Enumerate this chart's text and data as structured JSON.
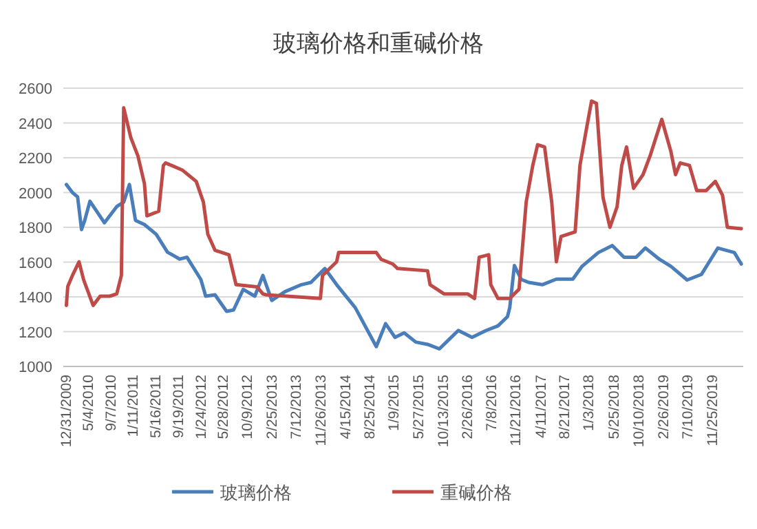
{
  "chart_data": {
    "type": "line",
    "title": "玻璃价格和重碱价格",
    "xlim": [
      "2009-12-20",
      "2020-05-22"
    ],
    "ylim": [
      1000,
      2600
    ],
    "yticks": [
      1000,
      1200,
      1400,
      1600,
      1800,
      2000,
      2200,
      2400,
      2600
    ],
    "xticks": [
      {
        "value": "2009-12-31",
        "label": "12/31/2009"
      },
      {
        "value": "2010-05-04",
        "label": "5/4/2010"
      },
      {
        "value": "2010-09-07",
        "label": "9/7/2010"
      },
      {
        "value": "2011-01-11",
        "label": "1/11/2011"
      },
      {
        "value": "2011-05-16",
        "label": "5/16/2011"
      },
      {
        "value": "2011-09-19",
        "label": "9/19/2011"
      },
      {
        "value": "2012-01-24",
        "label": "1/24/2012"
      },
      {
        "value": "2012-05-28",
        "label": "5/28/2012"
      },
      {
        "value": "2012-10-09",
        "label": "10/9/2012"
      },
      {
        "value": "2013-02-25",
        "label": "2/25/2013"
      },
      {
        "value": "2013-07-12",
        "label": "7/12/2013"
      },
      {
        "value": "2013-11-26",
        "label": "11/26/2013"
      },
      {
        "value": "2014-04-15",
        "label": "4/15/2014"
      },
      {
        "value": "2014-08-25",
        "label": "8/25/2014"
      },
      {
        "value": "2015-01-09",
        "label": "1/9/2015"
      },
      {
        "value": "2015-05-27",
        "label": "5/27/2015"
      },
      {
        "value": "2015-10-13",
        "label": "10/13/2015"
      },
      {
        "value": "2016-02-26",
        "label": "2/26/2016"
      },
      {
        "value": "2016-07-08",
        "label": "7/8/2016"
      },
      {
        "value": "2016-11-21",
        "label": "11/21/2016"
      },
      {
        "value": "2017-04-11",
        "label": "4/11/2017"
      },
      {
        "value": "2017-08-21",
        "label": "8/21/2017"
      },
      {
        "value": "2018-01-03",
        "label": "1/3/2018"
      },
      {
        "value": "2018-05-25",
        "label": "5/25/2018"
      },
      {
        "value": "2018-10-10",
        "label": "10/10/2018"
      },
      {
        "value": "2019-02-26",
        "label": "2/26/2019"
      },
      {
        "value": "2019-07-10",
        "label": "7/10/2019"
      },
      {
        "value": "2019-11-25",
        "label": "11/25/2019"
      }
    ],
    "grid": "y",
    "legend": "bottom",
    "series": [
      {
        "name": "玻璃价格",
        "color": "#4a7ebb",
        "x": [
          "2010-01-06",
          "2010-02-09",
          "2010-03-10",
          "2010-04-01",
          "2010-04-19",
          "2010-05-18",
          "2010-08-07",
          "2010-10-15",
          "2010-11-23",
          "2010-12-25",
          "2011-01-28",
          "2011-03-19",
          "2011-05-24",
          "2011-07-26",
          "2011-10-03",
          "2011-11-12",
          "2012-01-29",
          "2012-02-25",
          "2012-04-17",
          "2012-06-21",
          "2012-07-30",
          "2012-09-22",
          "2012-11-26",
          "2013-01-10",
          "2013-03-01",
          "2013-05-14",
          "2013-08-14",
          "2013-10-06",
          "2013-12-23",
          "2014-02-27",
          "2014-06-11",
          "2014-10-07",
          "2014-11-28",
          "2015-01-20",
          "2015-03-12",
          "2015-05-16",
          "2015-07-21",
          "2015-09-25",
          "2015-11-17",
          "2016-01-09",
          "2016-03-26",
          "2016-06-13",
          "2016-08-18",
          "2016-10-10",
          "2016-10-23",
          "2016-11-18",
          "2016-12-27",
          "2017-02-06",
          "2017-04-23",
          "2017-07-11",
          "2017-10-11",
          "2017-12-02",
          "2018-03-03",
          "2018-05-20",
          "2018-07-25",
          "2018-09-30",
          "2018-11-21",
          "2019-02-08",
          "2019-04-13",
          "2019-07-13",
          "2019-10-01",
          "2020-01-01",
          "2020-04-02",
          "2020-05-11"
        ],
        "values": [
          2046,
          2000,
          1975,
          1787,
          1840,
          1950,
          1826,
          1919,
          1945,
          2046,
          1840,
          1816,
          1760,
          1657,
          1617,
          1628,
          1500,
          1404,
          1412,
          1317,
          1325,
          1443,
          1404,
          1523,
          1380,
          1430,
          1470,
          1483,
          1563,
          1470,
          1338,
          1114,
          1246,
          1167,
          1193,
          1140,
          1127,
          1101,
          1154,
          1207,
          1167,
          1207,
          1233,
          1286,
          1338,
          1580,
          1500,
          1483,
          1470,
          1502,
          1502,
          1576,
          1655,
          1695,
          1628,
          1628,
          1681,
          1616,
          1576,
          1497,
          1529,
          1681,
          1655,
          1589
        ]
      },
      {
        "name": "重碱价格",
        "color": "#be4b48",
        "x": [
          "2010-01-06",
          "2010-01-14",
          "2010-02-09",
          "2010-03-18",
          "2010-04-13",
          "2010-06-05",
          "2010-07-14",
          "2010-09-06",
          "2010-10-15",
          "2010-11-10",
          "2010-11-23",
          "2011-01-02",
          "2011-02-11",
          "2011-03-19",
          "2011-04-02",
          "2011-06-07",
          "2011-07-03",
          "2011-07-16",
          "2011-10-16",
          "2012-01-03",
          "2012-02-12",
          "2012-03-08",
          "2012-04-17",
          "2012-07-04",
          "2012-08-13",
          "2012-12-09",
          "2013-01-10",
          "2013-01-30",
          "2013-11-28",
          "2013-12-10",
          "2014-02-27",
          "2014-03-10",
          "2014-10-07",
          "2014-11-03",
          "2015-01-07",
          "2015-02-03",
          "2015-07-21",
          "2015-08-04",
          "2015-10-21",
          "2016-03-01",
          "2016-04-09",
          "2016-05-05",
          "2016-06-27",
          "2016-07-09",
          "2016-08-18",
          "2016-10-23",
          "2016-12-14",
          "2017-01-23",
          "2017-03-01",
          "2017-03-28",
          "2017-05-06",
          "2017-06-15",
          "2017-07-11",
          "2017-08-06",
          "2017-10-24",
          "2017-11-20",
          "2017-12-29",
          "2018-01-24",
          "2018-02-20",
          "2018-03-29",
          "2018-05-07",
          "2018-06-16",
          "2018-07-12",
          "2018-08-08",
          "2018-09-16",
          "2018-11-08",
          "2018-12-17",
          "2019-02-21",
          "2019-04-13",
          "2019-05-09",
          "2019-06-04",
          "2019-07-26",
          "2019-09-05",
          "2019-10-27",
          "2019-12-18",
          "2020-01-27",
          "2020-02-23",
          "2020-05-11"
        ],
        "values": [
          1351,
          1460,
          1523,
          1602,
          1497,
          1351,
          1404,
          1404,
          1417,
          1523,
          2487,
          2315,
          2209,
          2051,
          1866,
          1892,
          2156,
          2170,
          2130,
          2064,
          1945,
          1760,
          1668,
          1642,
          1470,
          1457,
          1417,
          1412,
          1391,
          1523,
          1602,
          1655,
          1655,
          1616,
          1589,
          1563,
          1550,
          1470,
          1417,
          1417,
          1391,
          1628,
          1642,
          1470,
          1391,
          1391,
          1444,
          1945,
          2156,
          2275,
          2262,
          1945,
          1602,
          1747,
          1774,
          2156,
          2381,
          2526,
          2513,
          1972,
          1800,
          1919,
          2156,
          2262,
          2024,
          2103,
          2209,
          2421,
          2236,
          2103,
          2170,
          2156,
          2011,
          2011,
          2064,
          1985,
          1800,
          1792
        ]
      }
    ]
  }
}
